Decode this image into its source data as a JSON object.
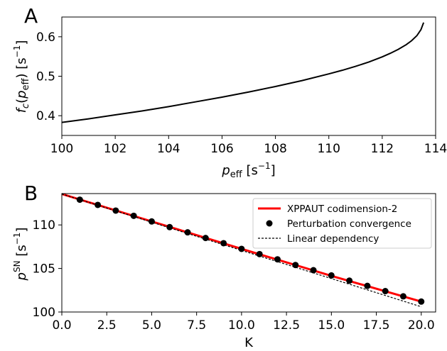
{
  "chart_data": [
    {
      "type": "line",
      "panel_label": "A",
      "xlabel": "p_eff [s^-1]",
      "ylabel": "f_c(p_eff) [s^-1]",
      "xlim": [
        100,
        114
      ],
      "ylim": [
        0.35,
        0.65
      ],
      "xticks": [
        "100",
        "102",
        "104",
        "106",
        "108",
        "110",
        "112",
        "114"
      ],
      "yticks": [
        "0.4",
        "0.5",
        "0.6"
      ],
      "grid": false,
      "series": [
        {
          "color": "#000000",
          "x": [
            100,
            101,
            102,
            103,
            104,
            105,
            106,
            107,
            108,
            109,
            110,
            110.5,
            111,
            111.5,
            112,
            112.3,
            112.6,
            112.9,
            113.1,
            113.3,
            113.45,
            113.55
          ],
          "y": [
            0.383,
            0.392,
            0.402,
            0.412,
            0.423,
            0.435,
            0.447,
            0.46,
            0.474,
            0.489,
            0.506,
            0.515,
            0.525,
            0.536,
            0.549,
            0.558,
            0.568,
            0.58,
            0.59,
            0.603,
            0.618,
            0.636
          ]
        }
      ]
    },
    {
      "type": "line",
      "panel_label": "B",
      "xlabel": "K",
      "ylabel": "p^SN [s^-1]",
      "xlim": [
        0,
        20.8
      ],
      "ylim": [
        100,
        113.6
      ],
      "xticks": [
        "0.0",
        "2.5",
        "5.0",
        "7.5",
        "10.0",
        "12.5",
        "15.0",
        "17.5",
        "20.0"
      ],
      "yticks": [
        "100",
        "105",
        "110"
      ],
      "grid": false,
      "legend_position": "top-right",
      "series": [
        {
          "name": "XPPAUT codimension-2",
          "style": "line",
          "color": "#ff0000",
          "x": [
            0,
            5,
            10,
            15,
            20
          ],
          "y": [
            113.55,
            110.4,
            107.25,
            104.15,
            101.2
          ]
        },
        {
          "name": "Perturbation convergence",
          "style": "points",
          "color": "#000000",
          "x": [
            1,
            2,
            3,
            4,
            5,
            6,
            7,
            8,
            9,
            10,
            11,
            12,
            13,
            14,
            15,
            16,
            17,
            18,
            19,
            20
          ],
          "y": [
            112.9,
            112.3,
            111.65,
            111.05,
            110.4,
            109.75,
            109.15,
            108.5,
            107.9,
            107.25,
            106.65,
            106.05,
            105.4,
            104.8,
            104.2,
            103.6,
            103.0,
            102.4,
            101.8,
            101.2
          ]
        },
        {
          "name": "Linear dependency",
          "style": "dashed",
          "color": "#000000",
          "x": [
            0,
            20
          ],
          "y": [
            113.55,
            100.6
          ]
        }
      ]
    }
  ]
}
